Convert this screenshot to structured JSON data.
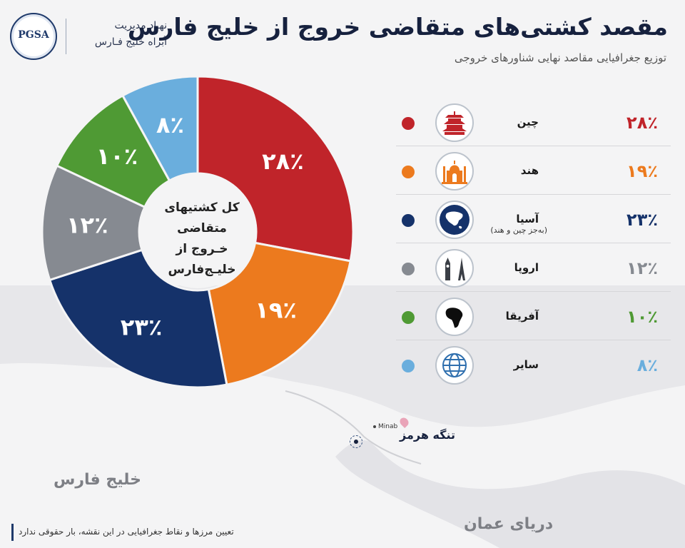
{
  "header": {
    "title": "مقصد کشتی‌های متقاضی خروج از خلیج فارس",
    "subtitle": "توزیع جغرافیایی مقاصد نهایی شناورهای خروجی"
  },
  "logo": {
    "text": "PGSA",
    "org_line1": "نهـاد مدیریت",
    "org_line2": "آبراه خلیج فـارس"
  },
  "chart_data": {
    "type": "pie",
    "center_label_line1": "کل کشتیهای متقاضی",
    "center_label_line2": "خـروج از خلیـج‌فارس",
    "categories": [
      "چین",
      "هند",
      "آسیا",
      "اروپا",
      "آفریقا",
      "سایر"
    ],
    "values": [
      28,
      19,
      23,
      12,
      10,
      8
    ],
    "value_labels": [
      "۲۸٪",
      "۱۹٪",
      "۲۳٪",
      "۱۲٪",
      "۱۰٪",
      "۸٪"
    ],
    "colors": [
      "#c0242a",
      "#ec7a1e",
      "#15326a",
      "#868a91",
      "#4f9a34",
      "#6aaedd"
    ],
    "legend_position": "right"
  },
  "legend": [
    {
      "name": "چین",
      "note": "",
      "pct": "۲۸٪",
      "icon": "pagoda-icon",
      "color": "#c0242a"
    },
    {
      "name": "هند",
      "note": "",
      "pct": "۱۹٪",
      "icon": "taj-mahal-icon",
      "color": "#ec7a1e"
    },
    {
      "name": "آسیا",
      "note": "(به‌جز چین و هند)",
      "pct": "۲۳٪",
      "icon": "asia-map-icon",
      "color": "#15326a"
    },
    {
      "name": "اروپا",
      "note": "",
      "pct": "۱۲٪",
      "icon": "big-ben-eiffel-icon",
      "color": "#868a91"
    },
    {
      "name": "آفریقا",
      "note": "",
      "pct": "۱۰٪",
      "icon": "africa-map-icon",
      "color": "#4f9a34"
    },
    {
      "name": "سایر",
      "note": "",
      "pct": "۸٪",
      "icon": "globe-icon",
      "color": "#6aaedd"
    }
  ],
  "map": {
    "persian_gulf": "خلیج فارس",
    "oman_sea": "دریای عمان",
    "hormuz": "تنگه هرمز",
    "minab": "Minab"
  },
  "footer": {
    "disclaimer": "تعیین مرزها و نقاط جغرافیایی در این نقشه، بار حقوقی ندارد"
  }
}
